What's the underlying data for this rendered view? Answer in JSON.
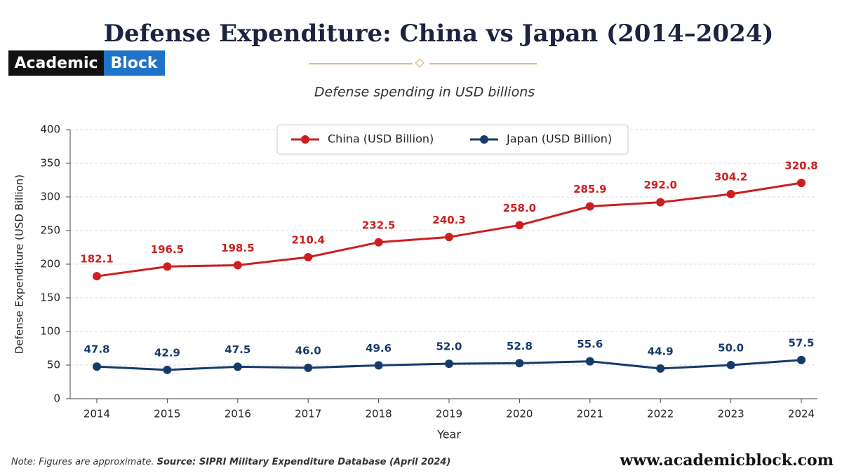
{
  "brand": {
    "logo_left": "Academic",
    "logo_right": "Block",
    "website": "www.academicblock.com"
  },
  "footer": {
    "note": "Note: Figures are approximate.",
    "source": "Source: SIPRI Military Expenditure Database (April 2024)"
  },
  "chart_data": {
    "type": "line",
    "title": "Defense Expenditure: China vs Japan (2014–2024)",
    "subtitle": "Defense spending in USD billions",
    "x_label": "Year",
    "y_label": "Defense Expenditure (USD Billion)",
    "categories": [
      "2014",
      "2015",
      "2016",
      "2017",
      "2018",
      "2019",
      "2020",
      "2021",
      "2022",
      "2023",
      "2024"
    ],
    "series": [
      {
        "name": "China (USD Billion)",
        "color": "#cc1f1f",
        "values": [
          182.1,
          196.5,
          198.5,
          210.4,
          232.5,
          240.3,
          258.0,
          285.9,
          292.0,
          304.2,
          320.8
        ],
        "value_labels": [
          "182.1",
          "196.5",
          "198.5",
          "210.4",
          "232.5",
          "240.3",
          "258.0",
          "285.9",
          "292.0",
          "304.2",
          "320.8"
        ]
      },
      {
        "name": "Japan (USD Billion)",
        "color": "#163a6b",
        "values": [
          47.8,
          42.9,
          47.5,
          46.0,
          49.6,
          52.0,
          52.8,
          55.6,
          44.9,
          50.0,
          57.5
        ],
        "value_labels": [
          "47.8",
          "42.9",
          "47.5",
          "46.0",
          "49.6",
          "52.0",
          "52.8",
          "55.6",
          "44.9",
          "50.0",
          "57.5"
        ]
      }
    ],
    "ylim": [
      0,
      400
    ],
    "yticks": [
      0,
      50,
      100,
      150,
      200,
      250,
      300,
      350,
      400
    ],
    "grid": true,
    "legend": "top-center"
  }
}
